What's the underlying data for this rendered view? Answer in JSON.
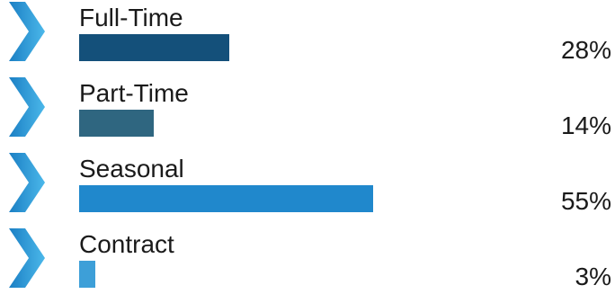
{
  "chart_data": {
    "type": "bar",
    "orientation": "horizontal",
    "categories": [
      "Full-Time",
      "Part-Time",
      "Seasonal",
      "Contract"
    ],
    "values": [
      28,
      14,
      55,
      3
    ],
    "value_labels": [
      "28%",
      "14%",
      "55%",
      "3%"
    ],
    "unit": "%",
    "bar_colors": [
      "#14507a",
      "#2f6680",
      "#2088cc",
      "#3d9fd8"
    ],
    "chevron_colors": [
      "#1b7fc4",
      "#4bb8ea"
    ],
    "grid": false
  }
}
